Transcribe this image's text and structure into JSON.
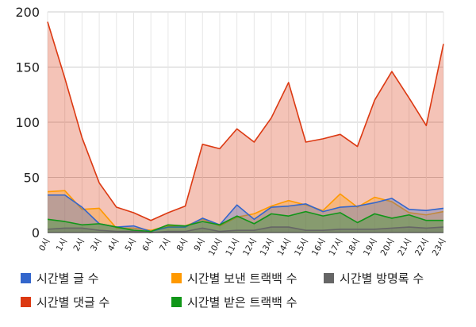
{
  "chart_data": {
    "type": "area",
    "title": "",
    "xlabel": "",
    "ylabel": "",
    "x": [
      "0시",
      "1시",
      "2시",
      "3시",
      "4시",
      "5시",
      "6시",
      "7시",
      "8시",
      "9시",
      "10시",
      "11시",
      "12시",
      "13시",
      "14시",
      "15시",
      "16시",
      "17시",
      "18시",
      "19시",
      "20시",
      "21시",
      "22시",
      "23시"
    ],
    "ylim": [
      0,
      200
    ],
    "yticks": [
      0,
      50,
      100,
      150,
      200
    ],
    "grid": true,
    "legend": "bottom",
    "series": [
      {
        "name": "시간별 댓글 수",
        "color": "#dc3912",
        "values": [
          191,
          140,
          86,
          45,
          23,
          18,
          11,
          18,
          24,
          80,
          76,
          94,
          82,
          104,
          136,
          82,
          85,
          89,
          78,
          120,
          146,
          122,
          97,
          171
        ]
      },
      {
        "name": "시간별 보낸 트랙백 수",
        "color": "#ff9900",
        "values": [
          37,
          38,
          21,
          22,
          4,
          4,
          2,
          6,
          6,
          12,
          6,
          14,
          17,
          24,
          29,
          25,
          20,
          35,
          23,
          32,
          28,
          18,
          16,
          19
        ]
      },
      {
        "name": "시간별 글 수",
        "color": "#3366cc",
        "values": [
          34,
          34,
          23,
          8,
          5,
          6,
          1,
          5,
          5,
          13,
          7,
          25,
          12,
          23,
          24,
          26,
          19,
          23,
          24,
          27,
          31,
          21,
          20,
          22
        ]
      },
      {
        "name": "시간별 받은 트랙백 수",
        "color": "#109618",
        "values": [
          12,
          10,
          7,
          8,
          5,
          2,
          1,
          7,
          6,
          10,
          7,
          15,
          8,
          17,
          15,
          19,
          15,
          18,
          9,
          17,
          13,
          16,
          11,
          11
        ]
      },
      {
        "name": "시간별 방명록 수",
        "color": "#666666",
        "values": [
          3,
          4,
          4,
          2,
          1,
          1,
          0,
          1,
          1,
          4,
          1,
          2,
          2,
          5,
          5,
          2,
          2,
          3,
          3,
          3,
          4,
          5,
          4,
          5
        ]
      }
    ],
    "legend_order": [
      "시간별 글 수",
      "시간별 보낸 트랙백 수",
      "시간별 방명록 수",
      "시간별 댓글 수",
      "시간별 받은 트랙백 수"
    ]
  }
}
